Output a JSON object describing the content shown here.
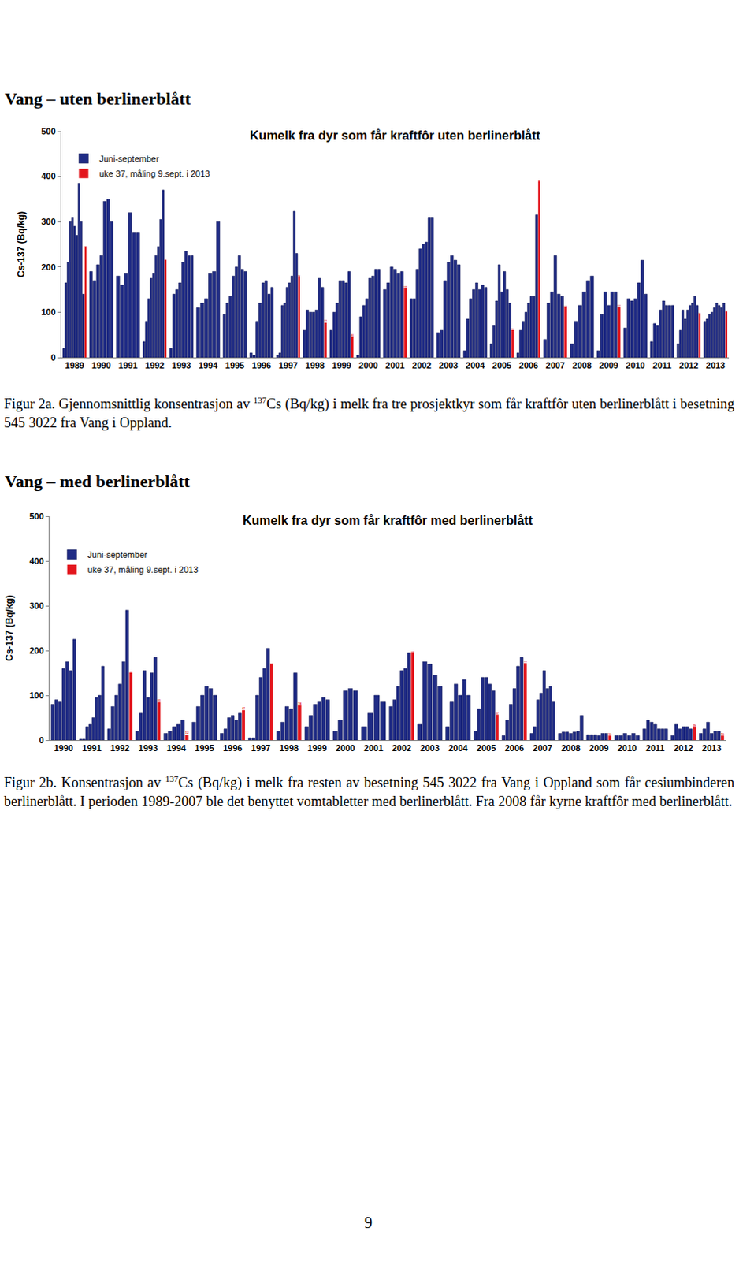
{
  "chart_data": [
    {
      "type": "bar",
      "title": "Kumelk fra dyr som får kraftfôr uten berlinerblått",
      "y_label": "Cs-137 (Bq/kg)",
      "categories": [
        "1989",
        "1990",
        "1991",
        "1992",
        "1993",
        "1994",
        "1995",
        "1996",
        "1997",
        "1998",
        "1999",
        "2000",
        "2001",
        "2002",
        "2003",
        "2004",
        "2005",
        "2006",
        "2007",
        "2008",
        "2009",
        "2010",
        "2011",
        "2012",
        "2013"
      ],
      "series": [
        {
          "name": "Juni-september",
          "color": "#1f2b85",
          "values": [
            [
              20,
              165,
              210,
              300,
              310,
              290,
              270,
              385,
              300,
              140
            ],
            [
              190,
              170,
              205,
              225,
              345,
              350,
              300
            ],
            [
              180,
              160,
              185,
              320,
              275,
              275
            ],
            [
              35,
              80,
              130,
              175,
              185,
              225,
              245,
              305,
              370
            ],
            [
              20,
              140,
              150,
              165,
              210,
              235,
              225,
              225
            ],
            [
              110,
              120,
              130,
              185,
              190,
              300
            ],
            [
              95,
              120,
              135,
              180,
              200,
              225,
              195,
              190
            ],
            [
              10,
              5,
              80,
              120,
              165,
              170,
              140,
              155
            ],
            [
              5,
              10,
              115,
              120,
              155,
              165,
              180,
              323,
              230
            ],
            [
              60,
              105,
              100,
              100,
              105,
              175,
              155
            ],
            [
              60,
              100,
              120,
              170,
              170,
              165,
              190
            ],
            [
              5,
              90,
              115,
              130,
              175,
              180,
              195,
              195
            ],
            [
              150,
              165,
              200,
              195,
              185,
              190
            ],
            [
              130,
              130,
              195,
              240,
              250,
              255,
              310,
              310
            ],
            [
              55,
              60,
              170,
              210,
              225,
              215,
              205
            ],
            [
              15,
              85,
              130,
              150,
              165,
              150,
              160,
              155
            ],
            [
              30,
              70,
              125,
              205,
              145,
              190,
              150,
              120
            ],
            [
              10,
              60,
              80,
              100,
              120,
              135,
              135,
              315
            ],
            [
              40,
              120,
              145,
              225,
              140,
              135
            ],
            [
              30,
              80,
              115,
              145,
              170,
              180
            ],
            [
              15,
              95,
              145,
              115,
              145,
              145
            ],
            [
              65,
              130,
              125,
              130,
              165,
              215,
              140
            ],
            [
              35,
              75,
              70,
              105,
              125,
              115,
              115,
              115
            ],
            [
              30,
              60,
              105,
              85,
              105,
              115,
              120,
              135,
              115
            ],
            [
              80,
              85,
              95,
              100,
              110,
              120,
              115,
              110,
              120
            ]
          ]
        },
        {
          "name": "uke 37, måling 9.sept. i 2013",
          "color": "#e3161d",
          "data_labels": true,
          "values": [
            245,
            null,
            null,
            216,
            null,
            null,
            null,
            null,
            180,
            77,
            46,
            null,
            155,
            null,
            null,
            null,
            61,
            390,
            112,
            null,
            113,
            null,
            null,
            97,
            102
          ]
        }
      ],
      "ylim": [
        0,
        500
      ],
      "yticks": [
        0,
        100,
        200,
        300,
        400,
        500
      ],
      "grid": false,
      "legend": "upper left"
    },
    {
      "type": "bar",
      "title": "Kumelk fra dyr som får kraftfôr med berlinerblått",
      "y_label": "Cs-137 (Bq/kg)",
      "categories": [
        "1990",
        "1991",
        "1992",
        "1993",
        "1994",
        "1995",
        "1996",
        "1997",
        "1998",
        "1999",
        "2000",
        "2001",
        "2002",
        "2003",
        "2004",
        "2005",
        "2006",
        "2007",
        "2008",
        "2009",
        "2010",
        "2011",
        "2012",
        "2013"
      ],
      "series": [
        {
          "name": "Juni-september",
          "color": "#1f2b85",
          "values": [
            [
              80,
              90,
              85,
              160,
              175,
              155,
              225
            ],
            [
              2,
              2,
              30,
              35,
              50,
              95,
              100,
              165
            ],
            [
              25,
              75,
              100,
              125,
              175,
              290
            ],
            [
              20,
              60,
              155,
              95,
              150,
              185
            ],
            [
              15,
              20,
              30,
              35,
              45
            ],
            [
              40,
              75,
              100,
              120,
              115,
              100
            ],
            [
              15,
              25,
              50,
              55,
              45,
              60
            ],
            [
              5,
              5,
              100,
              140,
              160,
              205
            ],
            [
              20,
              40,
              75,
              70,
              150
            ],
            [
              30,
              55,
              80,
              85,
              95,
              90
            ],
            [
              20,
              45,
              110,
              115,
              110
            ],
            [
              30,
              60,
              100,
              85
            ],
            [
              75,
              90,
              120,
              155,
              160,
              195
            ],
            [
              35,
              175,
              170,
              145,
              120
            ],
            [
              30,
              85,
              125,
              100,
              135,
              100
            ],
            [
              20,
              70,
              140,
              140,
              125,
              110
            ],
            [
              10,
              45,
              80,
              115,
              165,
              185
            ],
            [
              15,
              30,
              90,
              105,
              155,
              115,
              120,
              85
            ],
            [
              15,
              18,
              18,
              15,
              18,
              20,
              55
            ],
            [
              12,
              12,
              12,
              10,
              15,
              15
            ],
            [
              10,
              10,
              15,
              10,
              15,
              10
            ],
            [
              25,
              45,
              40,
              35,
              25,
              25,
              25
            ],
            [
              10,
              35,
              25,
              30,
              30,
              25
            ],
            [
              15,
              25,
              40,
              15,
              20,
              20
            ]
          ]
        },
        {
          "name": "uke 37, måling 9.sept. i 2013",
          "color": "#e3161d",
          "data_labels": true,
          "values": [
            null,
            null,
            151,
            85,
            12,
            null,
            67,
            170,
            78,
            null,
            null,
            null,
            196,
            null,
            null,
            57,
            172,
            null,
            null,
            10,
            null,
            null,
            29,
            10
          ]
        }
      ],
      "ylim": [
        0,
        500
      ],
      "yticks": [
        0,
        100,
        200,
        300,
        400,
        500
      ],
      "grid": false,
      "legend": "upper left"
    }
  ],
  "document": {
    "headings": [
      "Vang – uten berlinerblått",
      "Vang – med berlinerblått"
    ],
    "captions": [
      {
        "label": "Figur 2a.",
        "before": "Gjennomsnittlig konsentrasjon av",
        "sup": "137",
        "after": "Cs (Bq/kg) i melk fra tre prosjektkyr som får kraftfôr uten berlinerblått i besetning 545 3022 fra Vang i Oppland."
      },
      {
        "label": "Figur 2b.",
        "before": "Konsentrasjon av",
        "sup": "137",
        "after": "Cs (Bq/kg) i melk fra resten av besetning 545 3022 fra Vang i Oppland som får cesiumbinderen berlinerblått. I perioden 1989-2007 ble det benyttet vomtabletter med berlinerblått. Fra 2008 får kyrne kraftfôr med berlinerblått."
      }
    ],
    "page_number": "9"
  }
}
